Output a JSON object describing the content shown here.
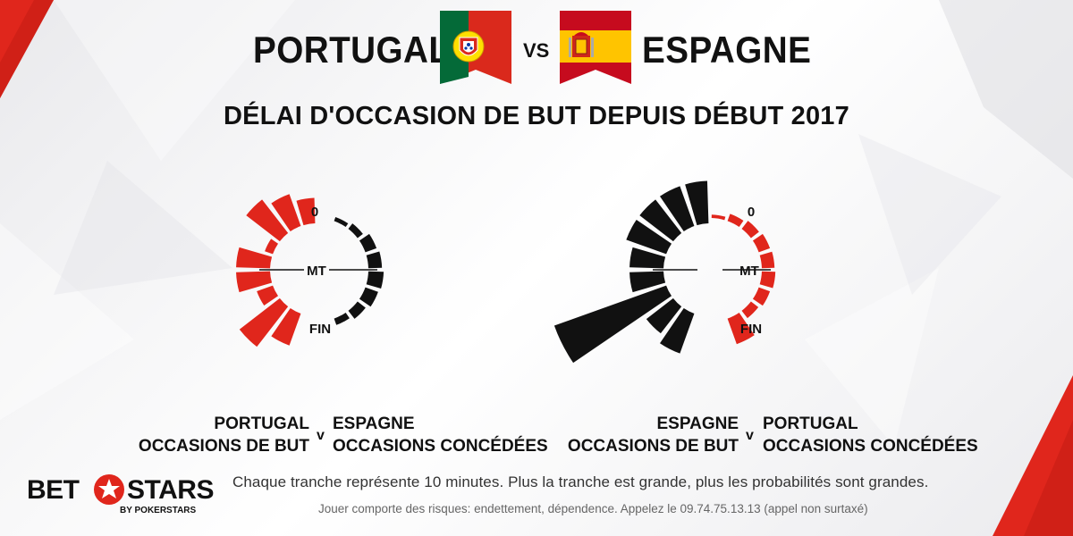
{
  "header": {
    "team_home": "PORTUGAL",
    "vs": "VS",
    "team_away": "ESPAGNE",
    "subtitle": "DÉLAI D'OCCASION DE BUT DEPUIS DÉBUT 2017"
  },
  "colors": {
    "red": "#e0261c",
    "black": "#111111"
  },
  "chart_data": [
    {
      "type": "radial-bar",
      "labels": {
        "start": "0",
        "mid": "MT",
        "end": "FIN"
      },
      "left_half": {
        "color": "#e0261c",
        "values": [
          3,
          4,
          5,
          1,
          4,
          4,
          2,
          6,
          4
        ]
      },
      "right_half": {
        "color": "#111111",
        "values": [
          0,
          0.5,
          0.8,
          1.4,
          1.6,
          1.8,
          1.6,
          1.2,
          0.8
        ]
      },
      "caption_left": [
        "PORTUGAL",
        "OCCASIONS DE BUT"
      ],
      "caption_right": [
        "ESPAGNE",
        "OCCASIONS CONCÉDÉES"
      ]
    },
    {
      "type": "radial-bar",
      "labels": {
        "start": "0",
        "mid": "MT",
        "end": "FIN"
      },
      "left_half": {
        "color": "#111111",
        "values": [
          5,
          5,
          5,
          5,
          4,
          4,
          14,
          4,
          5
        ]
      },
      "right_half": {
        "color": "#e0261c",
        "values": [
          0.4,
          0.9,
          1.2,
          1.4,
          1.5,
          1.6,
          1.4,
          1.1,
          3.2
        ]
      },
      "caption_left": [
        "ESPAGNE",
        "OCCASIONS DE BUT"
      ],
      "caption_right": [
        "PORTUGAL",
        "OCCASIONS CONCÉDÉES"
      ]
    }
  ],
  "captions": {
    "v": "v"
  },
  "footer": {
    "line1": "Chaque tranche représente 10 minutes. Plus la tranche est grande, plus les probabilités sont grandes.",
    "line2": "Jouer comporte des risques: endettement, dépendence. Appelez le 09.74.75.13.13 (appel non surtaxé)"
  },
  "logo": {
    "bet": "BET",
    "stars": "STARS",
    "by": "BY POKERSTARS"
  }
}
